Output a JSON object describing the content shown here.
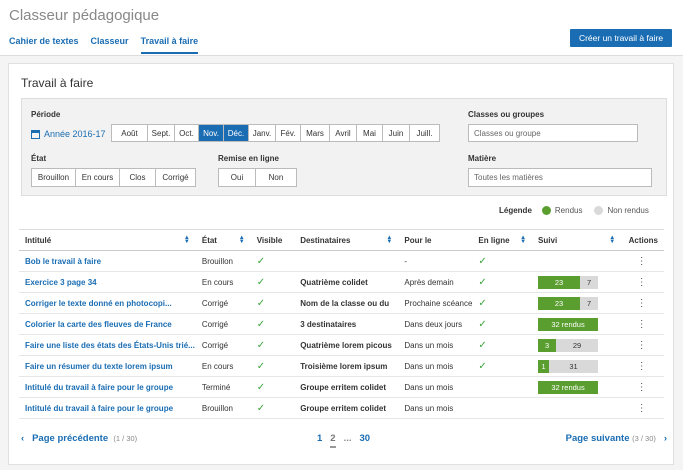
{
  "app": {
    "title": "Classeur pédagogique",
    "create_label": "Créer un travail à faire"
  },
  "tabs": [
    "Cahier de textes",
    "Classeur",
    "Travail à faire"
  ],
  "panel": {
    "title": "Travail à faire"
  },
  "filters": {
    "periode_label": "Période",
    "year": "Année 2016-17",
    "months": [
      "Août",
      "Sept.",
      "Oct.",
      "Nov.",
      "Déc.",
      "Janv.",
      "Fév.",
      "Mars",
      "Avril",
      "Mai",
      "Juin",
      "Juill."
    ],
    "months_selected": [
      "Nov.",
      "Déc."
    ],
    "etat_label": "État",
    "etats": [
      "Brouillon",
      "En cours",
      "Clos",
      "Corrigé"
    ],
    "remise_label": "Remise en ligne",
    "remise": [
      "Oui",
      "Non"
    ],
    "classes_label": "Classes ou groupes",
    "classes_placeholder": "Classes ou groupe",
    "matiere_label": "Matière",
    "matiere_value": "Toutes les matières"
  },
  "legend": {
    "title": "Légende",
    "rendus": "Rendus",
    "non_rendus": "Non rendus",
    "rendus_color": "#5a9e2f",
    "non_rendus_color": "#d9d9d9"
  },
  "table": {
    "headers": [
      "Intitulé",
      "État",
      "Visible",
      "Destinataires",
      "Pour le",
      "En ligne",
      "Suivi",
      "Actions"
    ],
    "rows": [
      {
        "title": "Bob le travail à faire",
        "etat": "Brouillon",
        "visible": true,
        "dest": "",
        "pour": "-",
        "enligne": true,
        "suivi": null
      },
      {
        "title": "Exercice 3 page 34",
        "etat": "En cours",
        "visible": true,
        "dest": "Quatrième colidet",
        "pour": "Après demain",
        "enligne": true,
        "suivi": {
          "g": "23",
          "r": "7",
          "gf": 0.7
        }
      },
      {
        "title": "Corriger le texte donné en photocopi...",
        "etat": "Corrigé",
        "visible": true,
        "dest": "Nom de la classe ou du",
        "pour": "Prochaine scéance",
        "enligne": true,
        "suivi": {
          "g": "23",
          "r": "7",
          "gf": 0.7
        }
      },
      {
        "title": "Colorier la carte des fleuves de France",
        "etat": "Corrigé",
        "visible": true,
        "dest": "3 destinataires",
        "pour": "Dans deux jours",
        "enligne": true,
        "suivi": {
          "g": "32 rendus",
          "r": "",
          "gf": 1
        }
      },
      {
        "title": "Faire une liste des états des États-Unis trié...",
        "etat": "Corrigé",
        "visible": true,
        "dest": "Quatrième lorem picous",
        "pour": "Dans un mois",
        "enligne": true,
        "suivi": {
          "g": "3",
          "r": "29",
          "gf": 0.3
        }
      },
      {
        "title": "Faire un résumer du texte lorem ipsum",
        "etat": "En cours",
        "visible": true,
        "dest": "Troisième lorem ipsum",
        "pour": "Dans un mois",
        "enligne": true,
        "suivi": {
          "g": "1",
          "r": "31",
          "gf": 0.18
        }
      },
      {
        "title": "Intitulé du travail à faire pour le groupe",
        "etat": "Terminé",
        "visible": true,
        "dest": "Groupe erritem colidet",
        "pour": "Dans un mois",
        "enligne": false,
        "suivi": {
          "g": "32 rendus",
          "r": "",
          "gf": 1
        }
      },
      {
        "title": "Intitulé du travail à faire pour le groupe",
        "etat": "Brouillon",
        "visible": true,
        "dest": "Groupe erritem colidet",
        "pour": "Dans un mois",
        "enligne": false,
        "suivi": null
      }
    ]
  },
  "pager": {
    "prev": "Page précédente",
    "prev_count": "(1 / 30)",
    "next": "Page suivante",
    "next_count": "(3 / 30)",
    "pages": [
      "1",
      "2",
      "...",
      "30"
    ],
    "current": "2"
  }
}
